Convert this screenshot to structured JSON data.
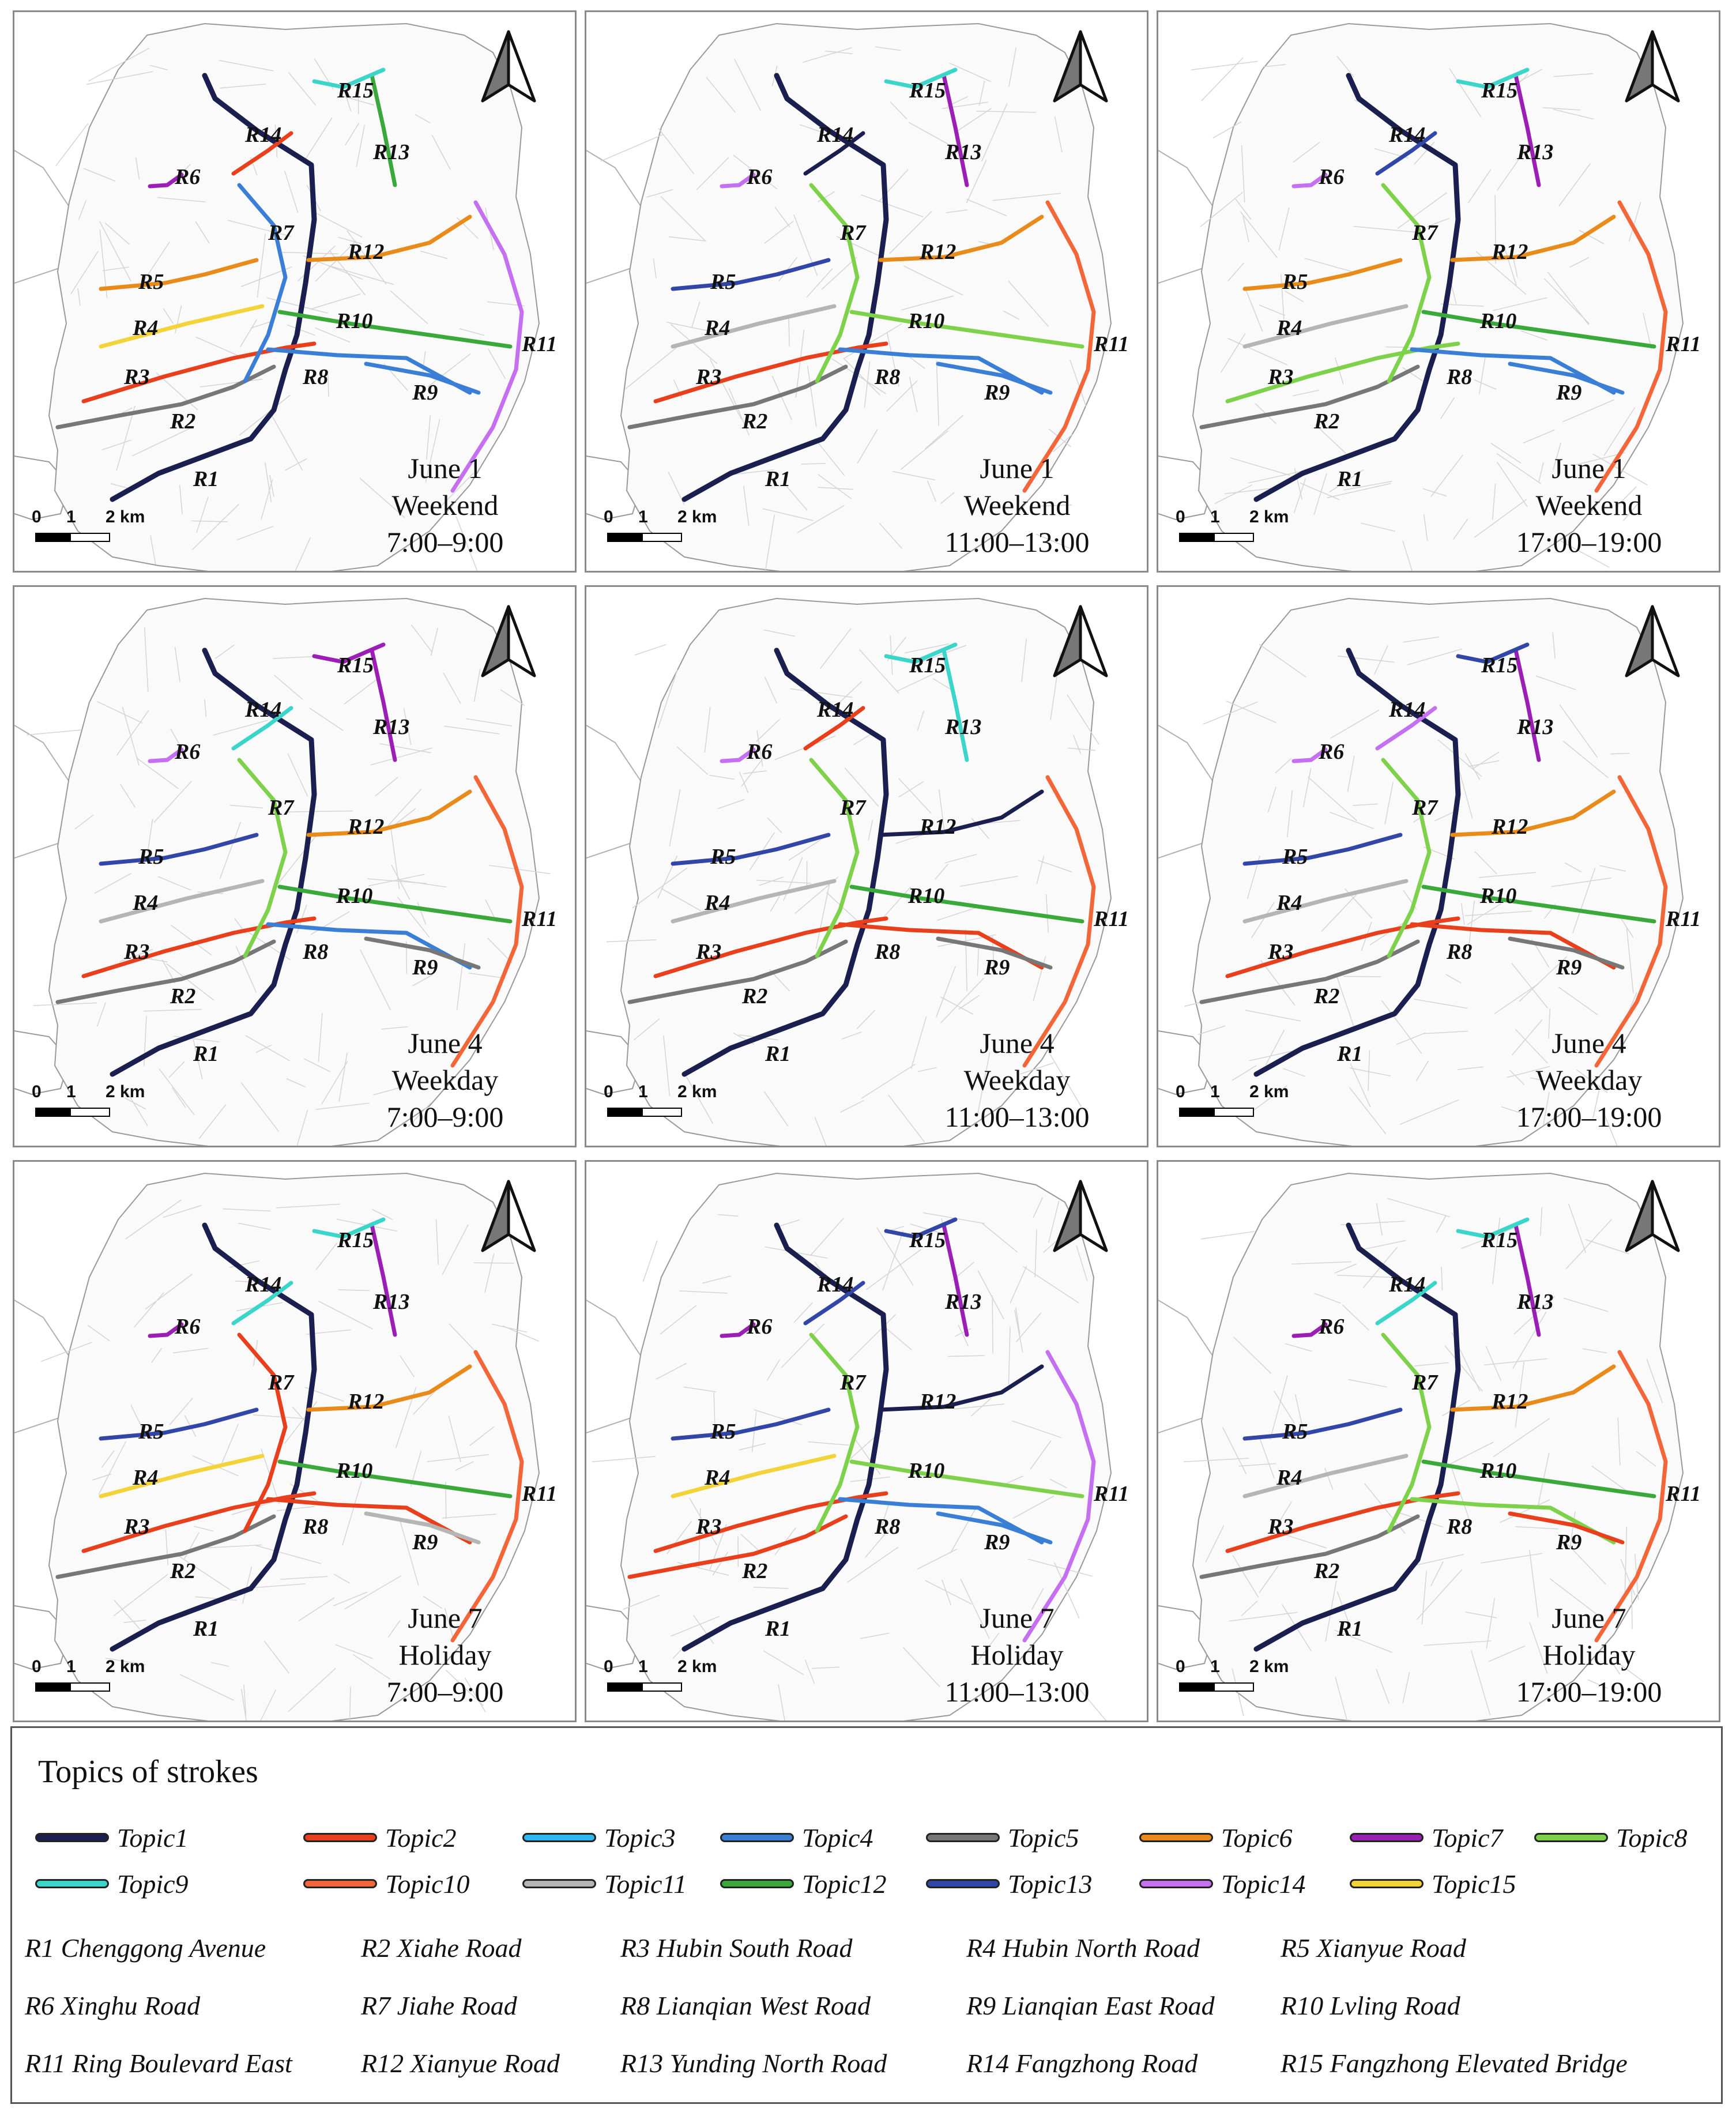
{
  "panels": [
    {
      "date": "June 1",
      "type": "Weekend",
      "time": "7:00–9:00"
    },
    {
      "date": "June 1",
      "type": "Weekend",
      "time": "11:00–13:00"
    },
    {
      "date": "June 1",
      "type": "Weekend",
      "time": "17:00–19:00"
    },
    {
      "date": "June 4",
      "type": "Weekday",
      "time": "7:00–9:00"
    },
    {
      "date": "June 4",
      "type": "Weekday",
      "time": "11:00–13:00"
    },
    {
      "date": "June 4",
      "type": "Weekday",
      "time": "17:00–19:00"
    },
    {
      "date": "June 7",
      "type": "Holiday",
      "time": "7:00–9:00"
    },
    {
      "date": "June 7",
      "type": "Holiday",
      "time": "11:00–13:00"
    },
    {
      "date": "June 7",
      "type": "Holiday",
      "time": "17:00–19:00"
    }
  ],
  "road_labels": [
    "R1",
    "R2",
    "R3",
    "R4",
    "R5",
    "R6",
    "R7",
    "R8",
    "R9",
    "R10",
    "R11",
    "R12",
    "R13",
    "R14",
    "R15"
  ],
  "scale_bar": {
    "zero": "0",
    "one": "1",
    "two": "2 km"
  },
  "legend": {
    "title": "Topics of strokes",
    "topics": [
      {
        "name": "Topic1",
        "color": "#1b1f4f"
      },
      {
        "name": "Topic2",
        "color": "#e8401c"
      },
      {
        "name": "Topic3",
        "color": "#2fb7f2"
      },
      {
        "name": "Topic4",
        "color": "#3a7fd5"
      },
      {
        "name": "Topic5",
        "color": "#777777"
      },
      {
        "name": "Topic6",
        "color": "#e88b1a"
      },
      {
        "name": "Topic7",
        "color": "#9b1fb5"
      },
      {
        "name": "Topic8",
        "color": "#7ed14a"
      },
      {
        "name": "Topic9",
        "color": "#3cd5c9"
      },
      {
        "name": "Topic10",
        "color": "#f2663a"
      },
      {
        "name": "Topic11",
        "color": "#b5b5b5"
      },
      {
        "name": "Topic12",
        "color": "#3aa83a"
      },
      {
        "name": "Topic13",
        "color": "#3246a8"
      },
      {
        "name": "Topic14",
        "color": "#c470f0"
      },
      {
        "name": "Topic15",
        "color": "#f2d43a"
      }
    ],
    "roads": [
      "R1 Chenggong Avenue",
      "R2 Xiahe Road",
      "R3 Hubin South Road",
      "R4 Hubin North Road",
      "R5 Xianyue Road",
      "R6 Xinghu Road",
      "R7 Jiahe Road",
      "R8 Lianqian West Road",
      "R9 Lianqian East Road",
      "R10 Lvling Road",
      "R11 Ring Boulevard East",
      "R12 Xianyue Road",
      "R13  Yunding North Road",
      "R14 Fangzhong Road",
      "R15 Fangzhong Elevated Bridge"
    ]
  }
}
